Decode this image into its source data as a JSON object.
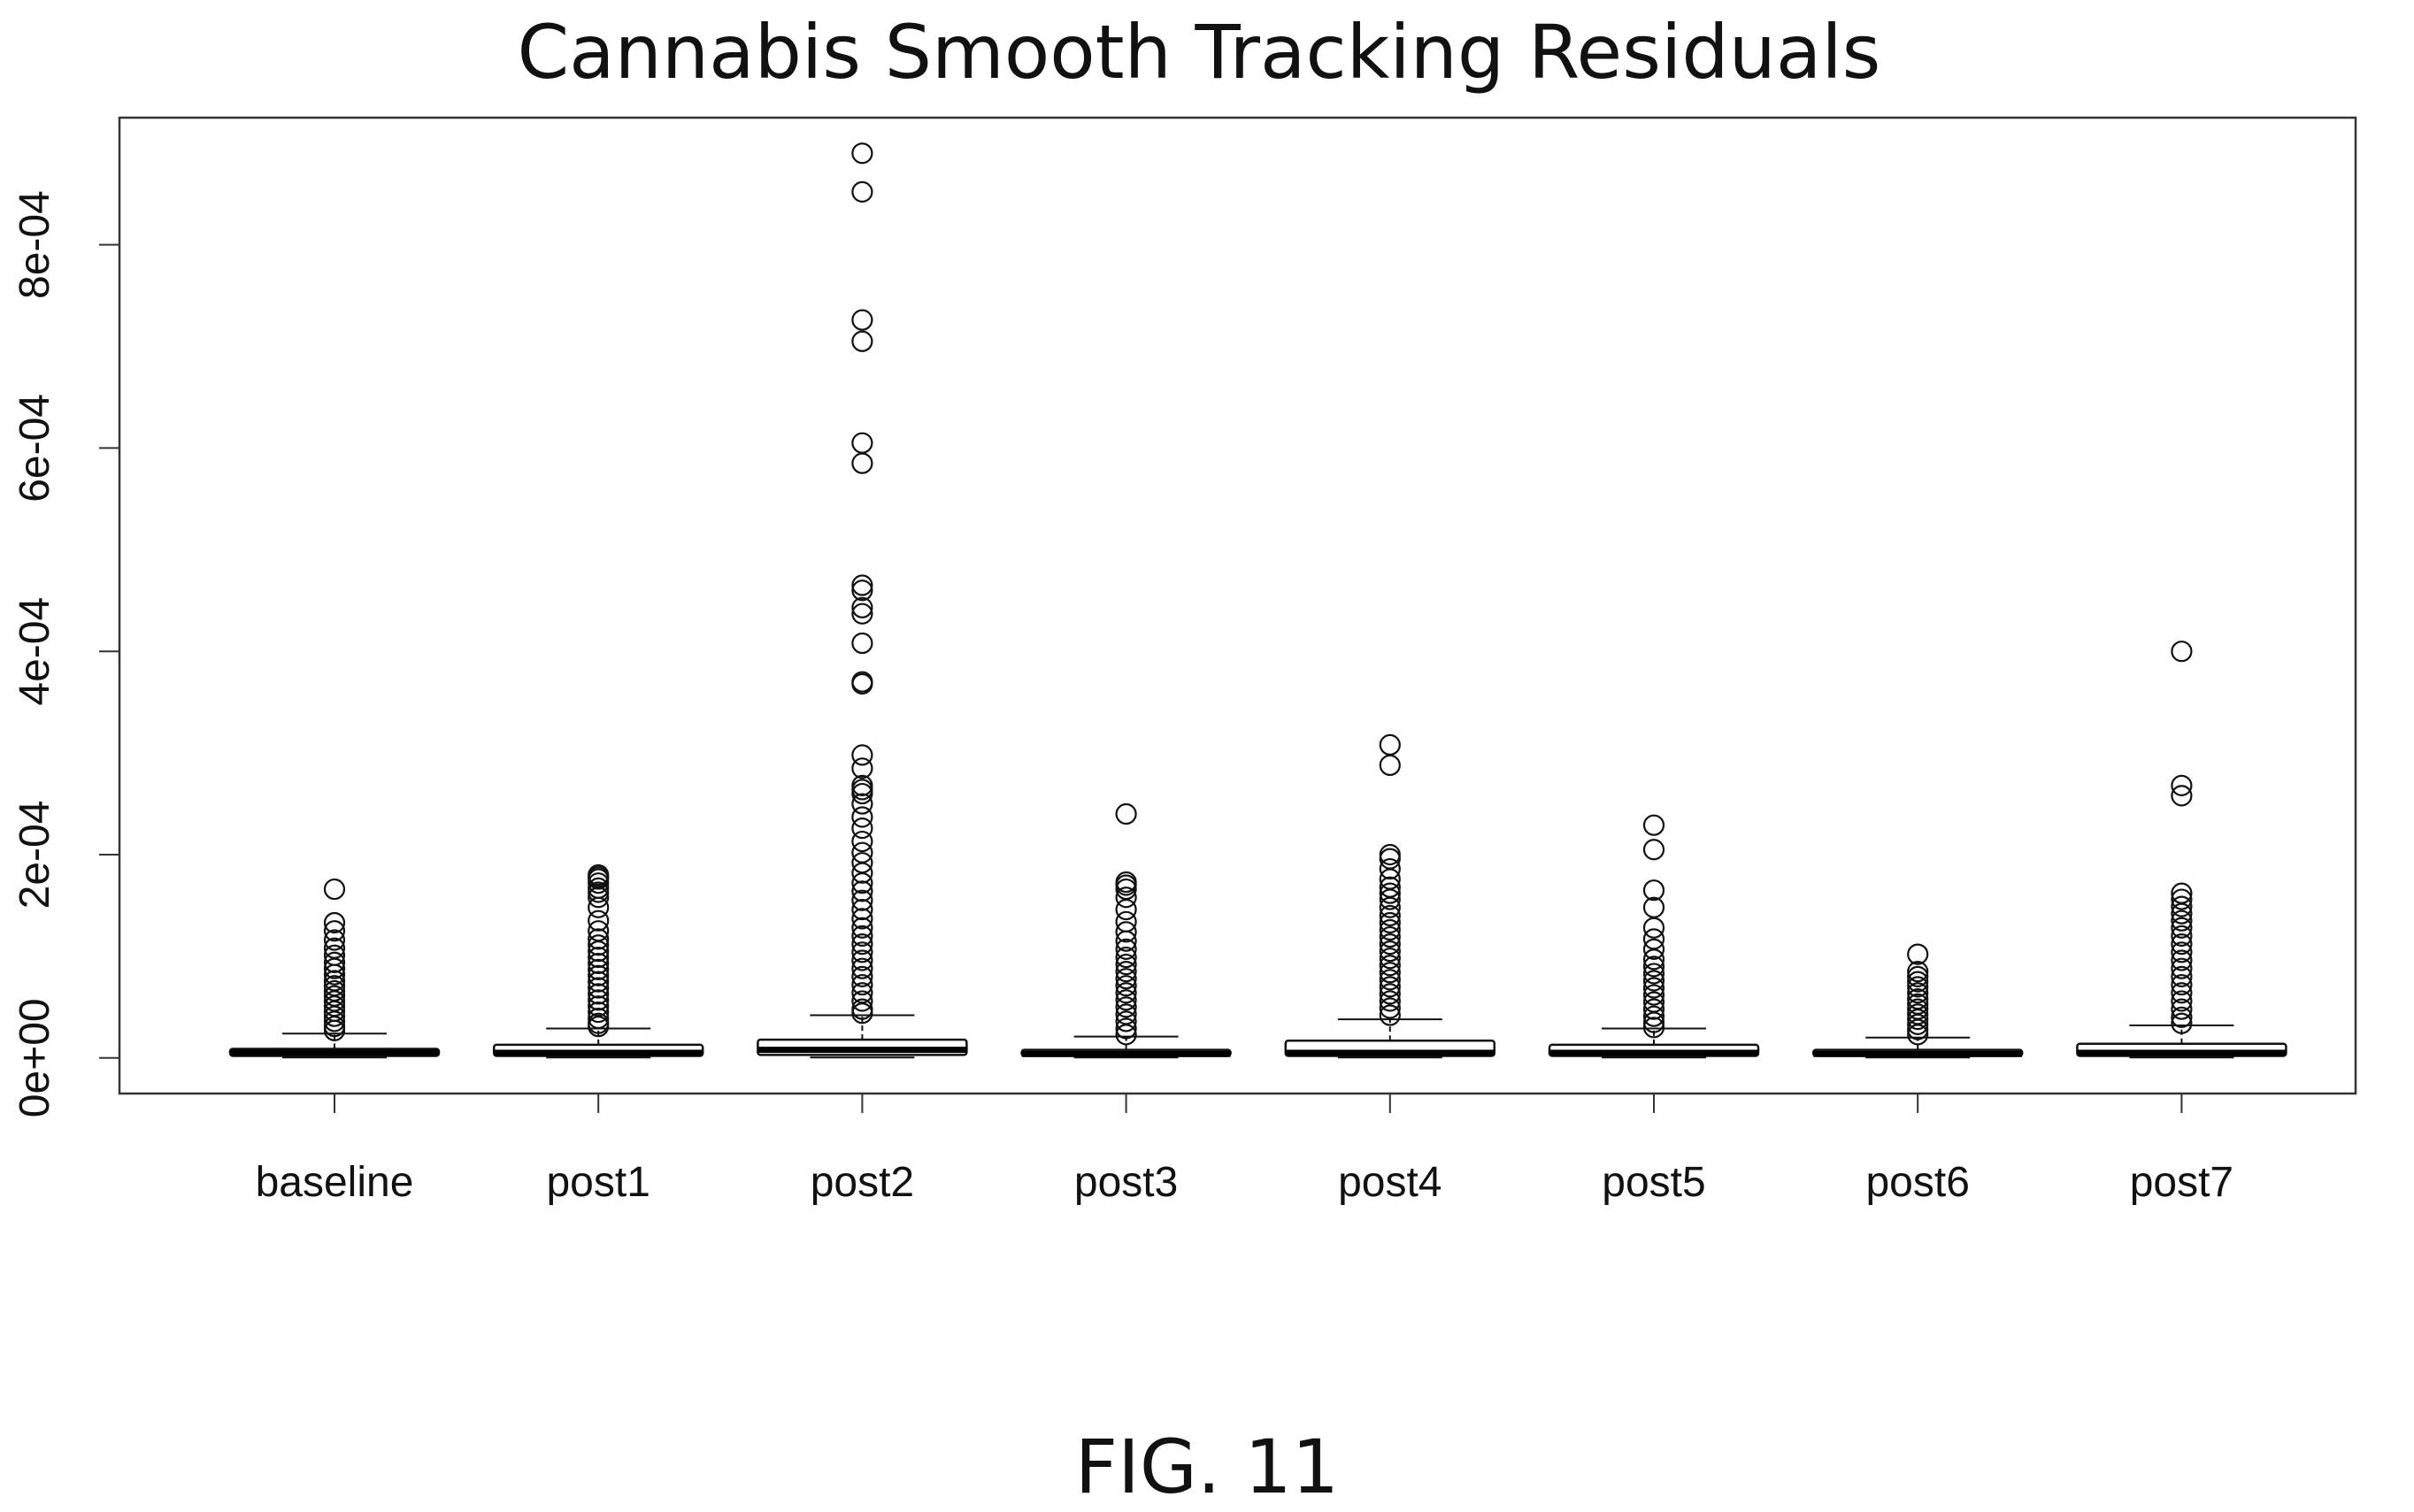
{
  "figure": {
    "caption": "FIG. 11"
  },
  "chart_data": {
    "type": "boxplot",
    "title": "Cannabis Smooth Tracking Residuals",
    "xlabel": "",
    "ylabel": "",
    "ylim": [
      -3.5e-05,
      0.000925
    ],
    "y_ticks": [
      0,
      0.0002,
      0.0004,
      0.0006,
      0.0008
    ],
    "y_tick_labels": [
      "0e+00",
      "2e-04",
      "4e-04",
      "6e-04",
      "8e-04"
    ],
    "grid": false,
    "legend": "none",
    "categories": [
      "baseline",
      "post1",
      "post2",
      "post3",
      "post4",
      "post5",
      "post6",
      "post7"
    ],
    "boxes": [
      {
        "name": "baseline",
        "min": 5e-07,
        "q1": 2e-06,
        "median": 5e-06,
        "q3": 9e-06,
        "whisker_high": 2.4e-05,
        "outliers": [
          0.000166,
          0.000133,
          0.000125,
          0.000116,
          0.000108,
          0.000101,
          9.4e-05,
          8.8e-05,
          8.2e-05,
          7.6e-05,
          7.1e-05,
          6.6e-05,
          6.1e-05,
          5.6e-05,
          5.1e-05,
          4.6e-05,
          4.1e-05,
          3.6e-05,
          3.1e-05,
          2.7e-05
        ]
      },
      {
        "name": "post1",
        "min": 5e-07,
        "q1": 2e-06,
        "median": 5e-06,
        "q3": 1.3e-05,
        "whisker_high": 2.9e-05,
        "outliers": [
          0.00018,
          0.000178,
          0.000176,
          0.000172,
          0.000167,
          0.000163,
          0.000158,
          0.000148,
          0.000135,
          0.000125,
          0.000117,
          0.000111,
          0.000105,
          9.9e-05,
          9.3e-05,
          8.7e-05,
          8.1e-05,
          7.5e-05,
          6.9e-05,
          6.3e-05,
          5.7e-05,
          5.1e-05,
          4.5e-05,
          3.9e-05,
          3.4e-05,
          3.1e-05
        ]
      },
      {
        "name": "post2",
        "min": 5e-07,
        "q1": 3e-06,
        "median": 8e-06,
        "q3": 1.8e-05,
        "whisker_high": 4.2e-05,
        "outliers": [
          0.00089,
          0.000852,
          0.000726,
          0.000705,
          0.000605,
          0.000585,
          0.000465,
          0.00046,
          0.000443,
          0.000437,
          0.000408,
          0.00037,
          0.000368,
          0.000298,
          0.000285,
          0.000268,
          0.000264,
          0.00026,
          0.00025,
          0.000237,
          0.000226,
          0.000213,
          0.000202,
          0.000192,
          0.000182,
          0.000172,
          0.000164,
          0.000155,
          0.000146,
          0.000137,
          0.000128,
          0.00012,
          0.000112,
          0.000104,
          9.6e-05,
          8.8e-05,
          8e-05,
          7.2e-05,
          6.4e-05,
          5.6e-05,
          4.8e-05,
          4.4e-05
        ]
      },
      {
        "name": "post3",
        "min": 5e-07,
        "q1": 2e-06,
        "median": 4e-06,
        "q3": 8e-06,
        "whisker_high": 2.1e-05,
        "outliers": [
          0.00024,
          0.000173,
          0.00017,
          0.000166,
          0.000158,
          0.000146,
          0.000134,
          0.000124,
          0.000115,
          0.000107,
          9.9e-05,
          9.2e-05,
          8.5e-05,
          7.8e-05,
          7.1e-05,
          6.4e-05,
          5.7e-05,
          5e-05,
          4.3e-05,
          3.6e-05,
          2.9e-05,
          2.3e-05
        ]
      },
      {
        "name": "post4",
        "min": 5e-07,
        "q1": 2e-06,
        "median": 5e-06,
        "q3": 1.7e-05,
        "whisker_high": 3.8e-05,
        "outliers": [
          0.000308,
          0.000288,
          0.0002,
          0.000196,
          0.000186,
          0.000176,
          0.000168,
          0.000162,
          0.000156,
          0.000148,
          0.00014,
          0.000133,
          0.000126,
          0.000119,
          0.000112,
          0.000105,
          9.8e-05,
          9.1e-05,
          8.4e-05,
          7.7e-05,
          7e-05,
          6.3e-05,
          5.6e-05,
          4.9e-05,
          4.2e-05
        ]
      },
      {
        "name": "post5",
        "min": 5e-07,
        "q1": 2e-06,
        "median": 5e-06,
        "q3": 1.3e-05,
        "whisker_high": 2.9e-05,
        "outliers": [
          0.000229,
          0.000205,
          0.000165,
          0.000148,
          0.000128,
          0.000117,
          0.000107,
          9.7e-05,
          9e-05,
          8.3e-05,
          7.6e-05,
          6.9e-05,
          6.2e-05,
          5.5e-05,
          4.8e-05,
          4.1e-05,
          3.5e-05,
          3e-05
        ]
      },
      {
        "name": "post6",
        "min": 5e-07,
        "q1": 2e-06,
        "median": 4e-06,
        "q3": 8e-06,
        "whisker_high": 2e-05,
        "outliers": [
          0.000102,
          8.5e-05,
          8e-05,
          7.5e-05,
          7e-05,
          6.4e-05,
          5.8e-05,
          5.3e-05,
          4.8e-05,
          4.3e-05,
          3.8e-05,
          3.3e-05,
          2.8e-05,
          2.3e-05
        ]
      },
      {
        "name": "post7",
        "min": 5e-07,
        "q1": 2e-06,
        "median": 5e-06,
        "q3": 1.4e-05,
        "whisker_high": 3.2e-05,
        "outliers": [
          0.0004,
          0.000268,
          0.000258,
          0.000162,
          0.000156,
          0.000149,
          0.000142,
          0.000135,
          0.000128,
          0.00012,
          0.000112,
          0.000104,
          9.6e-05,
          8.8e-05,
          8e-05,
          7.2e-05,
          6.4e-05,
          5.6e-05,
          4.8e-05,
          4e-05,
          3.4e-05
        ]
      }
    ]
  }
}
